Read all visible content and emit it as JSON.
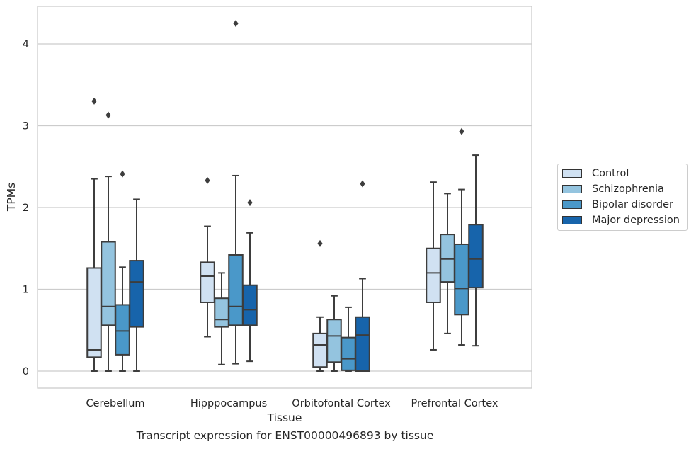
{
  "chart_data": {
    "type": "box",
    "title": "Transcript expression for ENST00000496893 by tissue",
    "xlabel": "Tissue",
    "ylabel": "TPMs",
    "categories": [
      "Cerebellum",
      "Hipppocampus",
      "Orbitofontal Cortex",
      "Prefrontal Cortex"
    ],
    "ylim": [
      -0.2,
      4.45
    ],
    "yticks": [
      0,
      1,
      2,
      3,
      4
    ],
    "grid": "horizontal",
    "legend_position": "right",
    "series": [
      {
        "name": "Control",
        "color": "#d0e1f2",
        "boxes": [
          {
            "whislo": 0.0,
            "q1": 0.17,
            "med": 0.26,
            "q3": 1.26,
            "whishi": 2.35,
            "fliers": [
              3.3
            ]
          },
          {
            "whislo": 0.42,
            "q1": 0.84,
            "med": 1.16,
            "q3": 1.33,
            "whishi": 1.77,
            "fliers": [
              2.33
            ]
          },
          {
            "whislo": 0.0,
            "q1": 0.05,
            "med": 0.32,
            "q3": 0.46,
            "whishi": 0.66,
            "fliers": [
              1.56
            ]
          },
          {
            "whislo": 0.26,
            "q1": 0.84,
            "med": 1.2,
            "q3": 1.5,
            "whishi": 2.31,
            "fliers": []
          }
        ]
      },
      {
        "name": "Schizophrenia",
        "color": "#94c4df",
        "boxes": [
          {
            "whislo": 0.0,
            "q1": 0.56,
            "med": 0.79,
            "q3": 1.58,
            "whishi": 2.38,
            "fliers": [
              3.13
            ]
          },
          {
            "whislo": 0.08,
            "q1": 0.54,
            "med": 0.63,
            "q3": 0.89,
            "whishi": 1.2,
            "fliers": []
          },
          {
            "whislo": 0.0,
            "q1": 0.11,
            "med": 0.43,
            "q3": 0.63,
            "whishi": 0.92,
            "fliers": []
          },
          {
            "whislo": 0.46,
            "q1": 1.09,
            "med": 1.37,
            "q3": 1.67,
            "whishi": 2.17,
            "fliers": []
          }
        ]
      },
      {
        "name": "Bipolar disorder",
        "color": "#4a98c9",
        "boxes": [
          {
            "whislo": 0.0,
            "q1": 0.2,
            "med": 0.49,
            "q3": 0.81,
            "whishi": 1.27,
            "fliers": [
              2.41
            ]
          },
          {
            "whislo": 0.09,
            "q1": 0.56,
            "med": 0.79,
            "q3": 1.42,
            "whishi": 2.39,
            "fliers": [
              4.25
            ]
          },
          {
            "whislo": 0.0,
            "q1": 0.01,
            "med": 0.15,
            "q3": 0.41,
            "whishi": 0.78,
            "fliers": []
          },
          {
            "whislo": 0.32,
            "q1": 0.69,
            "med": 1.01,
            "q3": 1.55,
            "whishi": 2.22,
            "fliers": [
              2.93
            ]
          }
        ]
      },
      {
        "name": "Major depression",
        "color": "#1764ab",
        "boxes": [
          {
            "whislo": 0.0,
            "q1": 0.54,
            "med": 1.09,
            "q3": 1.35,
            "whishi": 2.1,
            "fliers": []
          },
          {
            "whislo": 0.12,
            "q1": 0.56,
            "med": 0.75,
            "q3": 1.05,
            "whishi": 1.69,
            "fliers": [
              2.06
            ]
          },
          {
            "whislo": 0.0,
            "q1": 0.0,
            "med": 0.44,
            "q3": 0.66,
            "whishi": 1.13,
            "fliers": [
              2.29
            ]
          },
          {
            "whislo": 0.31,
            "q1": 1.02,
            "med": 1.37,
            "q3": 1.79,
            "whishi": 2.64,
            "fliers": []
          }
        ]
      }
    ]
  }
}
